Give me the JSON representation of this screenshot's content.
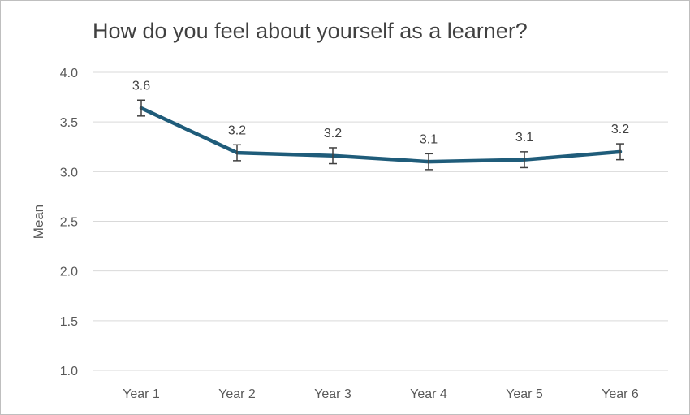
{
  "chart_data": {
    "type": "line",
    "title": "How do you feel about yourself as a learner?",
    "xlabel": "",
    "ylabel": "Mean",
    "categories": [
      "Year 1",
      "Year 2",
      "Year 3",
      "Year 4",
      "Year 5",
      "Year 6"
    ],
    "series": [
      {
        "values": [
          3.64,
          3.19,
          3.16,
          3.1,
          3.12,
          3.2
        ],
        "error": [
          0.08,
          0.08,
          0.08,
          0.08,
          0.08,
          0.08
        ],
        "data_labels": [
          "3.6",
          "3.2",
          "3.2",
          "3.1",
          "3.1",
          "3.2"
        ],
        "color": "#1f5c7a"
      }
    ],
    "ylim": [
      1.0,
      4.0
    ],
    "yticks": [
      "1.0",
      "1.5",
      "2.0",
      "2.5",
      "3.0",
      "3.5",
      "4.0"
    ],
    "grid": true,
    "gridline_color": "#d9d9d9",
    "error_bar_color": "#404040"
  }
}
